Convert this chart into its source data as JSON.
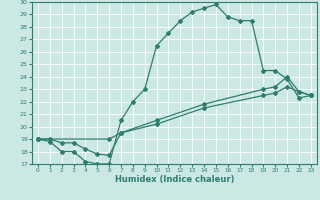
{
  "background_color": "#cce8e4",
  "grid_color": "#b0d8d2",
  "line_color": "#2e7d6e",
  "xlabel": "Humidex (Indice chaleur)",
  "ylim": [
    17,
    30
  ],
  "xlim": [
    -0.5,
    23.5
  ],
  "yticks": [
    17,
    18,
    19,
    20,
    21,
    22,
    23,
    24,
    25,
    26,
    27,
    28,
    29,
    30
  ],
  "xticks": [
    0,
    1,
    2,
    3,
    4,
    5,
    6,
    7,
    8,
    9,
    10,
    11,
    12,
    13,
    14,
    15,
    16,
    17,
    18,
    19,
    20,
    21,
    22,
    23
  ],
  "series1_x": [
    0,
    1,
    2,
    3,
    4,
    5,
    6,
    7,
    8,
    9,
    10,
    11,
    12,
    13,
    14,
    15,
    16,
    17,
    18,
    19,
    20,
    21,
    22,
    23
  ],
  "series1_y": [
    19.0,
    18.8,
    18.0,
    18.0,
    17.2,
    17.0,
    17.0,
    20.5,
    22.0,
    23.0,
    26.5,
    27.5,
    28.5,
    29.2,
    29.5,
    29.8,
    28.8,
    28.5,
    28.5,
    24.5,
    24.5,
    23.8,
    22.3,
    22.5
  ],
  "series2_x": [
    0,
    1,
    2,
    3,
    4,
    5,
    6,
    7,
    10,
    14,
    19,
    20,
    21,
    22,
    23
  ],
  "series2_y": [
    19.0,
    19.0,
    18.7,
    18.7,
    18.2,
    17.8,
    17.7,
    19.5,
    20.2,
    21.5,
    22.5,
    22.7,
    23.2,
    22.8,
    22.5
  ],
  "series3_x": [
    0,
    6,
    7,
    10,
    14,
    19,
    20,
    21,
    22,
    23
  ],
  "series3_y": [
    19.0,
    19.0,
    19.5,
    20.5,
    21.8,
    23.0,
    23.2,
    24.0,
    22.8,
    22.5
  ]
}
